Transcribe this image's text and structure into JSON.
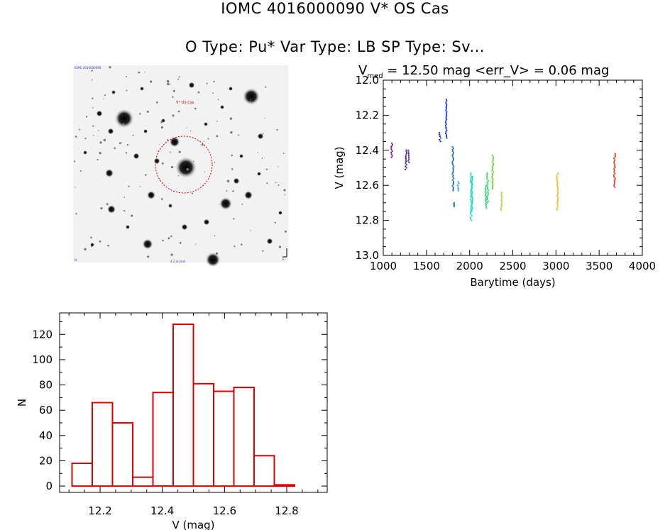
{
  "header": {
    "line1": "IOMC 4016000090   V* OS Cas",
    "line2": "O Type: Pu*  Var Type: LB  SP Type: Sv..."
  },
  "thumbnail": {
    "target_label": "V* OS Cas",
    "corner_label_tl": "IOMC 4016000090",
    "corner_label_bl": "N",
    "corner_label_br": "E",
    "scale_label": "4.2 arcmin"
  },
  "colors": {
    "histogram": "#dd0000",
    "circle": "#dd0000",
    "axis": "#000000"
  },
  "chart_data": [
    {
      "type": "scatter",
      "title_main": "V",
      "title_sub": "med",
      "title_rest": " = 12.50 mag <err_V> = 0.06 mag",
      "xlabel": "Barytime (days)",
      "ylabel": "V (mag)",
      "xlim": [
        1000,
        4000
      ],
      "ylim": [
        13.0,
        12.0
      ],
      "y_reversed": true,
      "xticks": [
        1000,
        1500,
        2000,
        2500,
        3000,
        3500,
        4000
      ],
      "yticks": [
        12.0,
        12.2,
        12.4,
        12.6,
        12.8,
        13.0
      ],
      "xtick_labels": [
        "1000",
        "1500",
        "2000",
        "2500",
        "3000",
        "3500",
        "4000"
      ],
      "ytick_labels": [
        "12.0",
        "12.2",
        "12.4",
        "12.6",
        "12.8",
        "13.0"
      ],
      "color_map": "rainbow by time",
      "groups": [
        {
          "x": 1090,
          "ymin": 12.36,
          "ymax": 12.44,
          "color": "#6a1a8a"
        },
        {
          "x": 1255,
          "ymin": 12.4,
          "ymax": 12.51,
          "color": "#5a1e96"
        },
        {
          "x": 1285,
          "ymin": 12.4,
          "ymax": 12.47,
          "color": "#4a2aa0"
        },
        {
          "x": 1650,
          "ymin": 12.3,
          "ymax": 12.35,
          "color": "#1f2ab0"
        },
        {
          "x": 1720,
          "ymin": 12.11,
          "ymax": 12.33,
          "color": "#1f3fc0"
        },
        {
          "x": 1800,
          "ymin": 12.38,
          "ymax": 12.63,
          "color": "#1f6fc8"
        },
        {
          "x": 1810,
          "ymin": 12.7,
          "ymax": 12.72,
          "color": "#1f6fc8"
        },
        {
          "x": 1860,
          "ymin": 12.58,
          "ymax": 12.63,
          "color": "#26a8d8"
        },
        {
          "x": 2010,
          "ymin": 12.53,
          "ymax": 12.8,
          "color": "#28d8d0"
        },
        {
          "x": 2020,
          "ymin": 12.55,
          "ymax": 12.75,
          "color": "#28d8c0"
        },
        {
          "x": 2180,
          "ymin": 12.6,
          "ymax": 12.73,
          "color": "#2cd890"
        },
        {
          "x": 2200,
          "ymin": 12.53,
          "ymax": 12.7,
          "color": "#34d860"
        },
        {
          "x": 2260,
          "ymin": 12.43,
          "ymax": 12.62,
          "color": "#66d83a"
        },
        {
          "x": 2360,
          "ymin": 12.64,
          "ymax": 12.74,
          "color": "#b0d830"
        },
        {
          "x": 3010,
          "ymin": 12.53,
          "ymax": 12.74,
          "color": "#f0b82a"
        },
        {
          "x": 3670,
          "ymin": 12.42,
          "ymax": 12.61,
          "color": "#e04418"
        }
      ]
    },
    {
      "type": "bar",
      "histogram": true,
      "xlabel": "V (mag)",
      "ylabel": "N",
      "xlim": [
        12.07,
        12.93
      ],
      "ylim": [
        -5,
        137
      ],
      "xticks": [
        12.2,
        12.4,
        12.6,
        12.8
      ],
      "yticks": [
        0,
        20,
        40,
        60,
        80,
        100,
        120
      ],
      "xtick_labels": [
        "12.2",
        "12.4",
        "12.6",
        "12.8"
      ],
      "ytick_labels": [
        "0",
        "20",
        "40",
        "60",
        "80",
        "100",
        "120"
      ],
      "bin_edges": [
        12.11,
        12.175,
        12.24,
        12.305,
        12.37,
        12.435,
        12.5,
        12.565,
        12.63,
        12.695,
        12.76,
        12.825,
        12.89
      ],
      "values": [
        18,
        66,
        50,
        7,
        74,
        128,
        81,
        75,
        78,
        24,
        1,
        0
      ]
    }
  ]
}
